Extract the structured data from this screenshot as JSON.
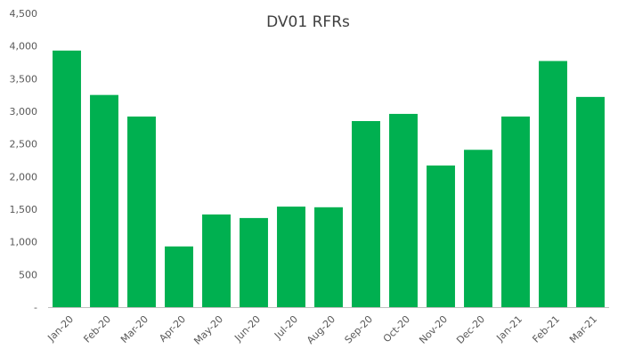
{
  "chart_data": {
    "type": "bar",
    "title": "DV01 RFRs",
    "xlabel": "",
    "ylabel": "",
    "categories": [
      "Jan-20",
      "Feb-20",
      "Mar-20",
      "Apr-20",
      "May-20",
      "Jun-20",
      "Jul-20",
      "Aug-20",
      "Sep-20",
      "Oct-20",
      "Nov-20",
      "Dec-20",
      "Jan-21",
      "Feb-21",
      "Mar-21"
    ],
    "values": [
      3930,
      3250,
      2920,
      930,
      1420,
      1365,
      1540,
      1530,
      2850,
      2960,
      2170,
      2410,
      2920,
      3770,
      3220
    ],
    "ylim": [
      0,
      4500
    ],
    "yticks": [
      0,
      500,
      1000,
      1500,
      2000,
      2500,
      3000,
      3500,
      4000,
      4500
    ],
    "ytick_labels": [
      "-",
      "500",
      "1,000",
      "1,500",
      "2,000",
      "2,500",
      "3,000",
      "3,500",
      "4,000",
      "4,500"
    ],
    "grid": false,
    "legend": "none",
    "bar_color": "#00b050",
    "axis_color": "#bfbfbf"
  }
}
